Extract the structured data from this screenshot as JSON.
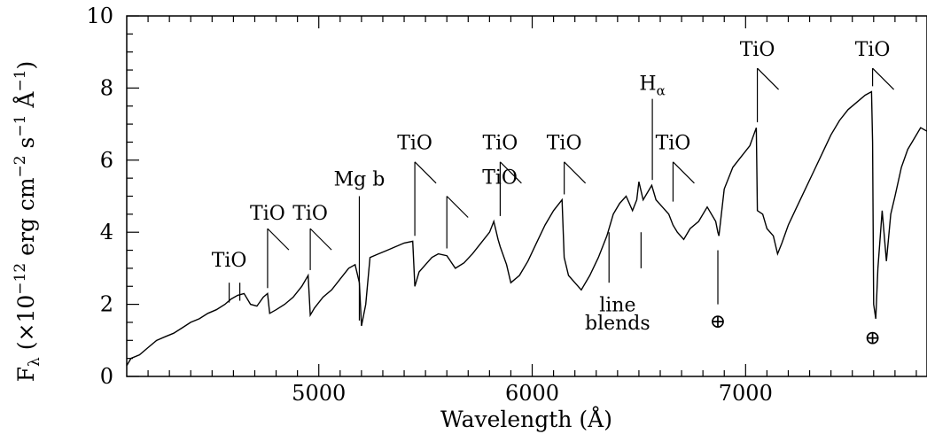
{
  "chart_data": {
    "type": "line",
    "xlabel": "Wavelength (Å)",
    "ylabel": "F_λ (×10^-12 erg cm^-2 s^-1 Å^-1)",
    "ylabel_parts": {
      "F": "F",
      "lambda": "λ",
      "open": " (×10",
      "exp1": "−12",
      "mid1": " erg cm",
      "exp2": "−2",
      "mid2": " s",
      "exp3": "−1",
      "mid3": " Å",
      "exp4": "−1",
      "close": ")"
    },
    "xlim": [
      4100,
      7850
    ],
    "ylim": [
      0,
      10
    ],
    "x_ticks": [
      5000,
      6000,
      7000
    ],
    "y_ticks": [
      0,
      2,
      4,
      6,
      8,
      10
    ],
    "grid": false,
    "series": [
      {
        "x": [
          4100,
          4120,
          4160,
          4200,
          4240,
          4280,
          4320,
          4360,
          4400,
          4440,
          4480,
          4520,
          4560,
          4590,
          4620,
          4650,
          4680,
          4710,
          4740,
          4760,
          4770,
          4800,
          4840,
          4880,
          4920,
          4950,
          4960,
          4980,
          5020,
          5060,
          5100,
          5140,
          5170,
          5190,
          5200,
          5220,
          5240,
          5280,
          5320,
          5360,
          5400,
          5440,
          5450,
          5470,
          5500,
          5530,
          5560,
          5600,
          5640,
          5680,
          5720,
          5760,
          5800,
          5820,
          5840,
          5850,
          5880,
          5900,
          5940,
          5980,
          6020,
          6060,
          6100,
          6140,
          6150,
          6170,
          6200,
          6230,
          6270,
          6310,
          6350,
          6380,
          6410,
          6440,
          6470,
          6490,
          6500,
          6520,
          6540,
          6560,
          6580,
          6610,
          6640,
          6660,
          6680,
          6710,
          6740,
          6780,
          6820,
          6860,
          6870,
          6875,
          6900,
          6940,
          6980,
          7020,
          7050,
          7055,
          7080,
          7100,
          7130,
          7150,
          7170,
          7200,
          7240,
          7280,
          7320,
          7360,
          7400,
          7440,
          7480,
          7520,
          7560,
          7590,
          7595,
          7600,
          7610,
          7620,
          7640,
          7660,
          7680,
          7700,
          7730,
          7760,
          7790,
          7820,
          7850
        ],
        "y": [
          0.3,
          0.5,
          0.6,
          0.8,
          1.0,
          1.1,
          1.2,
          1.35,
          1.5,
          1.6,
          1.75,
          1.85,
          2.0,
          2.15,
          2.25,
          2.3,
          2.0,
          1.95,
          2.2,
          2.3,
          1.75,
          1.85,
          2.0,
          2.2,
          2.5,
          2.8,
          1.7,
          1.9,
          2.2,
          2.4,
          2.7,
          3.0,
          3.1,
          2.6,
          1.4,
          2.0,
          3.3,
          3.4,
          3.5,
          3.6,
          3.7,
          3.75,
          2.5,
          2.9,
          3.1,
          3.3,
          3.4,
          3.35,
          3.0,
          3.15,
          3.4,
          3.7,
          4.0,
          4.3,
          3.8,
          3.6,
          3.1,
          2.6,
          2.8,
          3.2,
          3.7,
          4.2,
          4.6,
          4.9,
          3.3,
          2.8,
          2.6,
          2.4,
          2.8,
          3.3,
          3.9,
          4.5,
          4.8,
          5.0,
          4.6,
          4.9,
          5.4,
          4.9,
          5.1,
          5.3,
          4.9,
          4.7,
          4.5,
          4.2,
          4.0,
          3.8,
          4.1,
          4.3,
          4.7,
          4.3,
          4.0,
          3.9,
          5.2,
          5.8,
          6.1,
          6.4,
          6.9,
          4.6,
          4.5,
          4.1,
          3.9,
          3.4,
          3.7,
          4.2,
          4.7,
          5.2,
          5.7,
          6.2,
          6.7,
          7.1,
          7.4,
          7.6,
          7.8,
          7.9,
          6.5,
          2.0,
          1.6,
          3.0,
          4.6,
          3.2,
          4.5,
          5.0,
          5.8,
          6.3,
          6.6,
          6.9,
          6.8
        ]
      }
    ],
    "annotations": [
      {
        "label": "TiO",
        "x": 4580,
        "y": 1.95
      },
      {
        "label": "TiO",
        "x": 4760,
        "y": 2.3
      },
      {
        "label": "TiO",
        "x": 4960,
        "y": 2.8
      },
      {
        "label": "Mg  b",
        "x": 5190,
        "y": 1.4
      },
      {
        "label": "TiO",
        "x": 5450,
        "y": 3.75
      },
      {
        "label": "TiO",
        "x": 5600,
        "y": 3.4
      },
      {
        "label": "TiO",
        "x": 5850,
        "y": 4.3
      },
      {
        "label": "TiO",
        "x": 6150,
        "y": 4.9
      },
      {
        "label": "line",
        "x": 6400,
        "y": 3.5
      },
      {
        "label": "blends",
        "x": 6400,
        "y": 3.0
      },
      {
        "label": "H",
        "subscript": "α",
        "x": 6563,
        "y": 5.3
      },
      {
        "label": "TiO",
        "x": 6660,
        "y": 4.7
      },
      {
        "label": "⊕",
        "x": 6870,
        "y": 3.9
      },
      {
        "label": "TiO",
        "x": 7055,
        "y": 6.9
      },
      {
        "label": "TiO",
        "x": 7595,
        "y": 7.9
      },
      {
        "label": "⊕",
        "x": 7595,
        "y": 1.6
      }
    ]
  }
}
